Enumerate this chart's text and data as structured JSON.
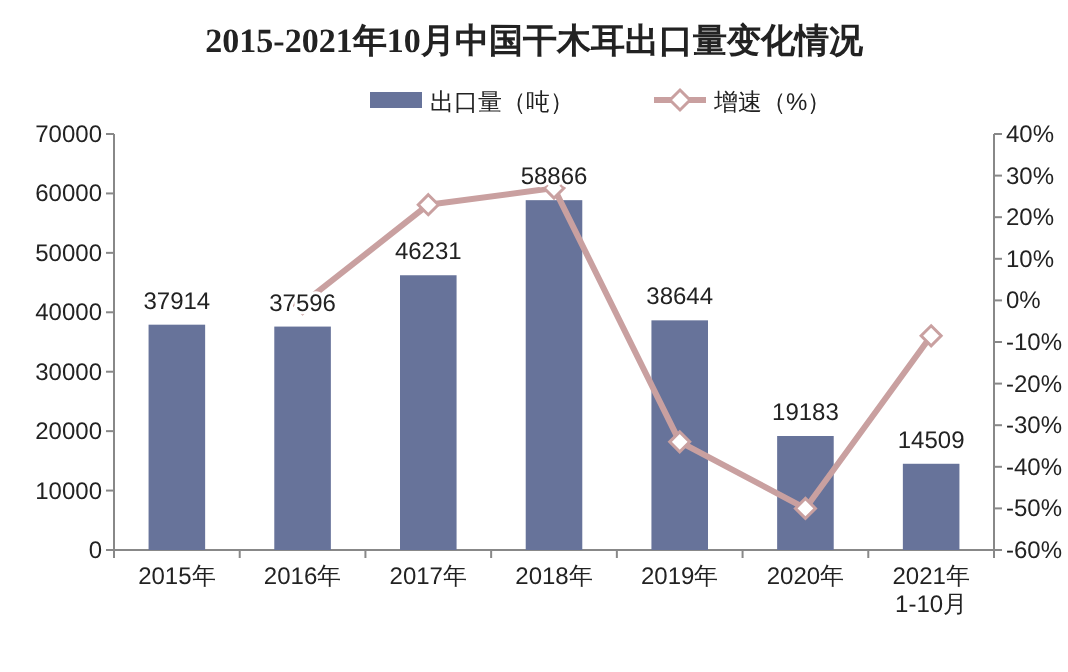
{
  "chart_data": {
    "type": "bar",
    "title": "2015-2021年10月中国干木耳出口量变化情况",
    "categories": [
      "2015年",
      "2016年",
      "2017年",
      "2018年",
      "2019年",
      "2020年",
      "2021年\n1-10月"
    ],
    "series": [
      {
        "name": "出口量（吨）",
        "color": "#67739a",
        "values": [
          37914,
          37596,
          46231,
          58866,
          38644,
          19183,
          14509
        ],
        "value_labels": [
          "37914",
          "37596",
          "46231",
          "58866",
          "38644",
          "19183",
          "14509"
        ]
      },
      {
        "name": "增速（%）",
        "type": "line",
        "axis": "y2",
        "color": "#c9a0a0",
        "values": [
          null,
          -0.8,
          23,
          27,
          -34,
          -50,
          -8.5
        ]
      }
    ],
    "ylim": [
      0,
      70000
    ],
    "yticks": [
      0,
      10000,
      20000,
      30000,
      40000,
      50000,
      60000,
      70000
    ],
    "y2lim": [
      -60,
      40
    ],
    "y2ticks": [
      {
        "value": -60,
        "label": "-60%"
      },
      {
        "value": -50,
        "label": "-50%"
      },
      {
        "value": -40,
        "label": "-40%"
      },
      {
        "value": -30,
        "label": "-30%"
      },
      {
        "value": -20,
        "label": "-20%"
      },
      {
        "value": -10,
        "label": "-10%"
      },
      {
        "value": 0,
        "label": "0%"
      },
      {
        "value": 10,
        "label": "10%"
      },
      {
        "value": 20,
        "label": "20%"
      },
      {
        "value": 30,
        "label": "30%"
      },
      {
        "value": 40,
        "label": "40%"
      }
    ],
    "legend": "top",
    "marker": "diamond",
    "line_style": "solid",
    "grid": false
  }
}
